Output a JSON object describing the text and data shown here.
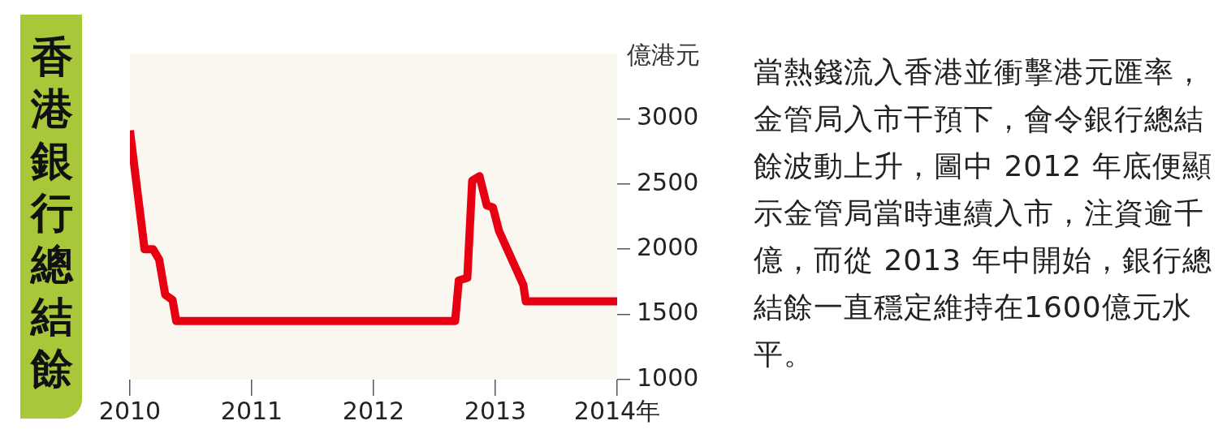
{
  "chart_data": {
    "type": "line",
    "title": "香港銀行總結餘",
    "ylabel": "億港元",
    "annotations": [
      "當熱錢流入香港並衝擊港元匯率，金管局入市干預下，會令銀行總結餘波動上升，圖中 2012 年底便顯示金管局當時連續入市，注資逾千億，而從 2013 年中開始，銀行總結餘一直穩定維持在1600億元水平。"
    ],
    "x": [
      2010.0,
      2010.12,
      2010.19,
      2010.24,
      2010.29,
      2010.35,
      2010.38,
      2012.67,
      2012.7,
      2012.77,
      2012.81,
      2012.87,
      2012.93,
      2012.98,
      2013.03,
      2013.23,
      2013.25,
      2014.0
    ],
    "series": [
      {
        "color": "#e60012",
        "values": [
          2910,
          2000,
          2000,
          1920,
          1650,
          1610,
          1450,
          1450,
          1760,
          1780,
          2525,
          2560,
          2335,
          2320,
          2140,
          1725,
          1600,
          1600
        ]
      }
    ],
    "xlim": [
      2010,
      2014
    ],
    "xticks": [
      2010,
      2011,
      2012,
      2013,
      {
        "value": 2014,
        "label": "2014年"
      }
    ],
    "ylim": [
      1000,
      3500
    ],
    "yticks": [
      1000,
      1500,
      2000,
      2500,
      3000
    ],
    "grid": false,
    "marker": "none",
    "line_style": "solid"
  }
}
